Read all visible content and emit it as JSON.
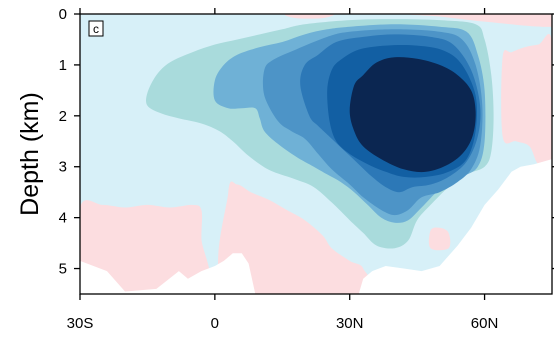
{
  "chart_data": {
    "type": "heatmap",
    "panel_label": "c",
    "xlabel": "",
    "ylabel": "Depth (km)",
    "x_ticks": [
      {
        "value": -30,
        "label": "30S"
      },
      {
        "value": 0,
        "label": "0"
      },
      {
        "value": 30,
        "label": "30N"
      },
      {
        "value": 60,
        "label": "60N"
      }
    ],
    "y_ticks": [
      {
        "value": 0,
        "label": "0"
      },
      {
        "value": 1,
        "label": "1"
      },
      {
        "value": 2,
        "label": "2"
      },
      {
        "value": 3,
        "label": "3"
      },
      {
        "value": 4,
        "label": "4"
      },
      {
        "value": 5,
        "label": "5"
      }
    ],
    "xlim": [
      -30,
      75
    ],
    "ylim": [
      0,
      5.5
    ],
    "y_inverted": true,
    "background_color": "#d7f0f8",
    "ocean_floor_color": "#ffffff",
    "negative_color": "#fcdde0",
    "contour_fills": [
      {
        "level": 1,
        "color": "#a9dbdc",
        "outline": [
          [
            -15,
            1.55
          ],
          [
            -13,
            1.2
          ],
          [
            -10,
            0.95
          ],
          [
            -5,
            0.75
          ],
          [
            0,
            0.6
          ],
          [
            5,
            0.5
          ],
          [
            10,
            0.4
          ],
          [
            15,
            0.3
          ],
          [
            20,
            0.2
          ],
          [
            30,
            0.12
          ],
          [
            40,
            0.1
          ],
          [
            50,
            0.12
          ],
          [
            58,
            0.2
          ],
          [
            60,
            0.5
          ],
          [
            61.5,
            1.2
          ],
          [
            62,
            2.0
          ],
          [
            61.5,
            2.7
          ],
          [
            60,
            3.0
          ],
          [
            56,
            3.15
          ],
          [
            52,
            3.4
          ],
          [
            48,
            3.75
          ],
          [
            45,
            4.05
          ],
          [
            43,
            4.45
          ],
          [
            40,
            4.6
          ],
          [
            36,
            4.55
          ],
          [
            33,
            4.3
          ],
          [
            30,
            4.05
          ],
          [
            26,
            3.7
          ],
          [
            22,
            3.4
          ],
          [
            18,
            3.25
          ],
          [
            13,
            3.1
          ],
          [
            10,
            2.95
          ],
          [
            7,
            2.75
          ],
          [
            4,
            2.5
          ],
          [
            1,
            2.3
          ],
          [
            -3,
            2.15
          ],
          [
            -8,
            2.05
          ],
          [
            -12,
            1.95
          ],
          [
            -15,
            1.8
          ]
        ]
      },
      {
        "level": 2,
        "color": "#6fb1d6",
        "outline": [
          [
            0,
            1.7
          ],
          [
            0,
            1.3
          ],
          [
            2,
            1.0
          ],
          [
            5,
            0.8
          ],
          [
            10,
            0.65
          ],
          [
            15,
            0.55
          ],
          [
            20,
            0.4
          ],
          [
            25,
            0.3
          ],
          [
            30,
            0.25
          ],
          [
            40,
            0.2
          ],
          [
            50,
            0.25
          ],
          [
            56,
            0.35
          ],
          [
            58.5,
            0.8
          ],
          [
            60,
            1.5
          ],
          [
            60,
            2.5
          ],
          [
            58.5,
            3.0
          ],
          [
            55,
            3.2
          ],
          [
            50,
            3.45
          ],
          [
            46,
            3.8
          ],
          [
            43,
            4.05
          ],
          [
            40,
            4.1
          ],
          [
            37,
            4.0
          ],
          [
            34,
            3.75
          ],
          [
            31,
            3.5
          ],
          [
            28,
            3.3
          ],
          [
            25,
            3.15
          ],
          [
            22,
            3.0
          ],
          [
            18,
            2.8
          ],
          [
            14,
            2.55
          ],
          [
            11,
            2.3
          ],
          [
            10,
            2.05
          ],
          [
            9,
            1.85
          ],
          [
            6,
            1.85
          ],
          [
            3,
            1.85
          ]
        ]
      },
      {
        "level": 3,
        "color": "#4d94c7",
        "outline": [
          [
            11,
            1.6
          ],
          [
            11,
            1.1
          ],
          [
            13,
            0.9
          ],
          [
            18,
            0.7
          ],
          [
            25,
            0.45
          ],
          [
            30,
            0.35
          ],
          [
            40,
            0.3
          ],
          [
            50,
            0.35
          ],
          [
            55,
            0.5
          ],
          [
            58,
            1.0
          ],
          [
            59.5,
            1.8
          ],
          [
            59,
            2.6
          ],
          [
            57,
            3.05
          ],
          [
            54,
            3.3
          ],
          [
            50,
            3.5
          ],
          [
            46,
            3.6
          ],
          [
            43,
            3.85
          ],
          [
            40,
            3.95
          ],
          [
            37,
            3.85
          ],
          [
            33,
            3.6
          ],
          [
            30,
            3.35
          ],
          [
            26,
            3.05
          ],
          [
            23,
            2.75
          ],
          [
            20,
            2.45
          ],
          [
            17,
            2.3
          ],
          [
            14,
            2.1
          ]
        ]
      },
      {
        "level": 4,
        "color": "#2c78b7",
        "outline": [
          [
            19,
            1.4
          ],
          [
            20,
            1.0
          ],
          [
            23,
            0.8
          ],
          [
            27,
            0.55
          ],
          [
            33,
            0.45
          ],
          [
            40,
            0.4
          ],
          [
            48,
            0.45
          ],
          [
            53,
            0.6
          ],
          [
            57,
            1.1
          ],
          [
            59,
            1.8
          ],
          [
            58.5,
            2.4
          ],
          [
            56,
            2.9
          ],
          [
            52,
            3.2
          ],
          [
            48,
            3.35
          ],
          [
            44,
            3.4
          ],
          [
            41,
            3.5
          ],
          [
            38,
            3.4
          ],
          [
            35,
            3.2
          ],
          [
            32,
            2.95
          ],
          [
            29,
            2.7
          ],
          [
            26,
            2.45
          ],
          [
            23,
            2.2
          ],
          [
            21,
            2.0
          ]
        ]
      },
      {
        "level": 5,
        "color": "#125fa3",
        "outline": [
          [
            25,
            1.5
          ],
          [
            26,
            1.1
          ],
          [
            28,
            0.9
          ],
          [
            32,
            0.7
          ],
          [
            38,
            0.62
          ],
          [
            45,
            0.62
          ],
          [
            51,
            0.72
          ],
          [
            55,
            1.0
          ],
          [
            58,
            1.6
          ],
          [
            58,
            2.3
          ],
          [
            56,
            2.85
          ],
          [
            52,
            3.1
          ],
          [
            47,
            3.2
          ],
          [
            42,
            3.2
          ],
          [
            38,
            3.1
          ],
          [
            34,
            2.95
          ],
          [
            30,
            2.75
          ],
          [
            27,
            2.5
          ],
          [
            25.5,
            2.1
          ]
        ]
      },
      {
        "level": 6,
        "color": "#0b2651",
        "outline": [
          [
            31,
            1.4
          ],
          [
            33,
            1.2
          ],
          [
            36,
            0.95
          ],
          [
            40,
            0.85
          ],
          [
            45,
            0.88
          ],
          [
            50,
            1.0
          ],
          [
            54,
            1.2
          ],
          [
            57,
            1.5
          ],
          [
            58,
            1.9
          ],
          [
            57.5,
            2.35
          ],
          [
            55.5,
            2.7
          ],
          [
            52,
            2.95
          ],
          [
            47,
            3.1
          ],
          [
            42,
            3.05
          ],
          [
            37,
            2.85
          ],
          [
            33,
            2.6
          ],
          [
            31,
            2.3
          ],
          [
            30,
            1.9
          ]
        ]
      }
    ],
    "negative_regions": [
      {
        "color": "#fcdde0",
        "outline": [
          [
            -30,
            3.8
          ],
          [
            -25,
            3.75
          ],
          [
            -20,
            3.8
          ],
          [
            -15,
            3.75
          ],
          [
            -10,
            3.8
          ],
          [
            -5,
            3.75
          ],
          [
            -3,
            3.85
          ],
          [
            -3,
            4.4
          ],
          [
            -3,
            5.5
          ],
          [
            -30,
            5.5
          ]
        ]
      },
      {
        "color": "#fcdde0",
        "outline": [
          [
            3,
            3.5
          ],
          [
            5,
            3.35
          ],
          [
            8,
            3.5
          ],
          [
            12,
            3.65
          ],
          [
            16,
            3.85
          ],
          [
            20,
            4.05
          ],
          [
            24,
            4.35
          ],
          [
            26,
            4.6
          ],
          [
            30,
            4.85
          ],
          [
            33,
            5.0
          ],
          [
            33,
            5.5
          ],
          [
            3,
            5.5
          ]
        ]
      },
      {
        "color": "#fcdde0",
        "outline": [
          [
            64,
            0.85
          ],
          [
            66,
            0.75
          ],
          [
            69,
            0.65
          ],
          [
            72,
            0.6
          ],
          [
            75,
            0.55
          ],
          [
            75,
            2.85
          ],
          [
            72,
            2.95
          ],
          [
            70,
            2.6
          ],
          [
            67,
            2.5
          ],
          [
            64,
            2.4
          ]
        ]
      },
      {
        "color": "#fcdde0",
        "outline": [
          [
            48,
            4.25
          ],
          [
            50,
            4.2
          ],
          [
            52,
            4.3
          ],
          [
            52,
            4.6
          ],
          [
            48,
            4.6
          ]
        ]
      },
      {
        "color": "#fcdde0",
        "outline": [
          [
            44,
            0.0
          ],
          [
            75,
            0.0
          ],
          [
            75,
            0.25
          ],
          [
            60,
            0.15
          ],
          [
            50,
            0.05
          ]
        ]
      },
      {
        "color": "#fcdde0",
        "outline": [
          [
            16,
            0.0
          ],
          [
            26,
            0.0
          ],
          [
            24,
            0.08
          ],
          [
            18,
            0.08
          ]
        ]
      }
    ],
    "ocean_floor": {
      "color": "#ffffff",
      "outline": [
        [
          -30,
          5.5
        ],
        [
          -30,
          4.85
        ],
        [
          -27,
          4.95
        ],
        [
          -24,
          5.05
        ],
        [
          -20,
          5.45
        ],
        [
          -13,
          5.4
        ],
        [
          -8,
          5.05
        ],
        [
          -6,
          5.2
        ],
        [
          -3,
          5.05
        ],
        [
          0,
          4.95
        ],
        [
          2,
          4.85
        ],
        [
          4,
          4.7
        ],
        [
          6,
          4.7
        ],
        [
          7.5,
          4.9
        ],
        [
          9,
          5.5
        ],
        [
          32,
          5.5
        ],
        [
          33,
          5.2
        ],
        [
          35,
          5.05
        ],
        [
          38,
          4.95
        ],
        [
          42,
          5.0
        ],
        [
          46,
          5.05
        ],
        [
          50,
          4.95
        ],
        [
          54,
          4.55
        ],
        [
          57,
          4.2
        ],
        [
          60,
          3.75
        ],
        [
          63,
          3.45
        ],
        [
          66,
          3.1
        ],
        [
          68,
          3.0
        ],
        [
          71,
          2.95
        ],
        [
          75,
          2.85
        ],
        [
          75,
          5.5
        ]
      ]
    }
  }
}
